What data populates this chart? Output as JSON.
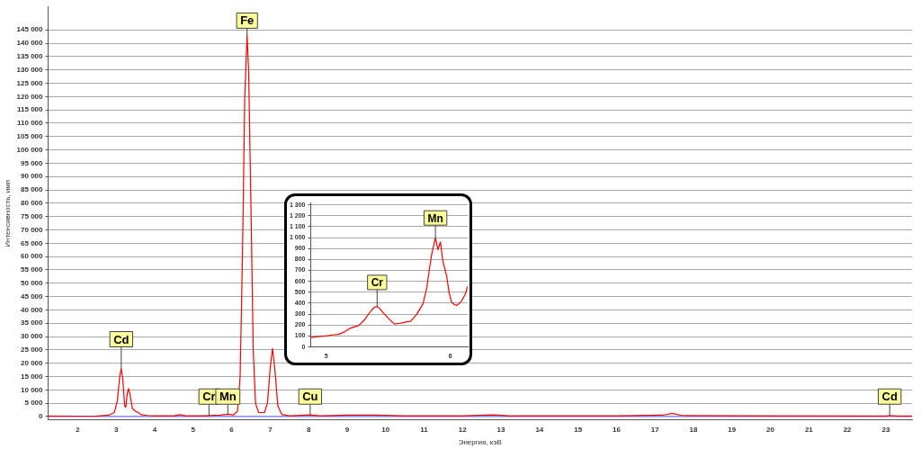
{
  "chart_data": [
    {
      "type": "line",
      "xlabel": "Энергия, кэВ",
      "ylabel": "Интенсивность, имп",
      "xlim": [
        1.23,
        23.68
      ],
      "ylim": [
        -1300,
        153600
      ],
      "xticks": [
        2,
        3,
        4,
        5,
        6,
        7,
        8,
        9,
        10,
        11,
        12,
        13,
        14,
        15,
        16,
        17,
        18,
        19,
        20,
        21,
        22,
        23
      ],
      "yticks": [
        {
          "value": 0,
          "label": "0"
        },
        {
          "value": 5000,
          "label": "5 000"
        },
        {
          "value": 10000,
          "label": "10 000"
        },
        {
          "value": 15000,
          "label": "15 000"
        },
        {
          "value": 20000,
          "label": "20 000"
        },
        {
          "value": 25000,
          "label": "25 000"
        },
        {
          "value": 30000,
          "label": "30 000"
        },
        {
          "value": 35000,
          "label": "35 000"
        },
        {
          "value": 40000,
          "label": "40 000"
        },
        {
          "value": 45000,
          "label": "45 000"
        },
        {
          "value": 50000,
          "label": "50 000"
        },
        {
          "value": 55000,
          "label": "55 000"
        },
        {
          "value": 60000,
          "label": "60 000"
        },
        {
          "value": 65000,
          "label": "65 000"
        },
        {
          "value": 70000,
          "label": "70 000"
        },
        {
          "value": 75000,
          "label": "75 000"
        },
        {
          "value": 80000,
          "label": "80 000"
        },
        {
          "value": 85000,
          "label": "85 000"
        },
        {
          "value": 90000,
          "label": "90 000"
        },
        {
          "value": 95000,
          "label": "95 000"
        },
        {
          "value": 100000,
          "label": "100 000"
        },
        {
          "value": 105000,
          "label": "105 000"
        },
        {
          "value": 110000,
          "label": "110 000"
        },
        {
          "value": 115000,
          "label": "115 000"
        },
        {
          "value": 120000,
          "label": "120 000"
        },
        {
          "value": 125000,
          "label": "125 000"
        },
        {
          "value": 130000,
          "label": "130 000"
        },
        {
          "value": 135000,
          "label": "135 000"
        },
        {
          "value": 140000,
          "label": "140 000"
        },
        {
          "value": 145000,
          "label": "145 000"
        }
      ],
      "grid": "y",
      "legend": false,
      "marker": "none",
      "line_style": "solid",
      "series": [
        {
          "color": "#ff0000",
          "x": [
            1.23,
            2.0,
            2.5,
            2.8,
            2.95,
            3.03,
            3.09,
            3.13,
            3.17,
            3.22,
            3.25,
            3.29,
            3.32,
            3.36,
            3.42,
            3.5,
            3.57,
            3.65,
            3.8,
            4.0,
            4.5,
            4.65,
            4.8,
            5.2,
            5.41,
            5.7,
            5.9,
            6.05,
            6.15,
            6.22,
            6.28,
            6.34,
            6.4,
            6.44,
            6.5,
            6.56,
            6.62,
            6.7,
            6.85,
            6.93,
            7.0,
            7.06,
            7.12,
            7.2,
            7.3,
            7.5,
            8.04,
            8.3,
            9.0,
            9.7,
            10.5,
            12.0,
            12.8,
            13.2,
            16.0,
            17.2,
            17.45,
            17.7,
            19.5,
            23.0,
            23.1,
            23.3,
            23.68
          ],
          "values": [
            200,
            150,
            200,
            500,
            1500,
            6000,
            15000,
            18000,
            14000,
            4000,
            3500,
            9000,
            10500,
            8000,
            3000,
            2000,
            1500,
            700,
            400,
            300,
            250,
            700,
            250,
            250,
            350,
            500,
            900,
            600,
            2000,
            15000,
            60000,
            120000,
            143000,
            130000,
            80000,
            25000,
            5000,
            1500,
            1500,
            5000,
            18000,
            25500,
            18000,
            4000,
            800,
            300,
            600,
            300,
            500,
            500,
            300,
            250,
            600,
            250,
            300,
            500,
            1200,
            400,
            250,
            200,
            400,
            200,
            200
          ]
        },
        {
          "color": "#8080ff",
          "x": [
            1.23,
            23.68
          ],
          "values": [
            0,
            0
          ]
        }
      ],
      "annotations": [
        {
          "text": "Cd",
          "x": 3.13,
          "y": 29000
        },
        {
          "text": "Fe",
          "x": 6.4,
          "y": 148500
        },
        {
          "text": "Cr",
          "x": 5.41,
          "y": 7500
        },
        {
          "text": "Mn",
          "x": 5.9,
          "y": 7500
        },
        {
          "text": "Cu",
          "x": 8.04,
          "y": 7500
        },
        {
          "text": "Cd",
          "x": 23.1,
          "y": 7500
        }
      ]
    },
    {
      "type": "line",
      "xlim": [
        4.875,
        6.14
      ],
      "ylim": [
        0,
        1320
      ],
      "xticks": [
        5,
        6
      ],
      "yticks": [
        {
          "value": 0,
          "label": "0"
        },
        {
          "value": 100,
          "label": "100"
        },
        {
          "value": 200,
          "label": "200"
        },
        {
          "value": 300,
          "label": "300"
        },
        {
          "value": 400,
          "label": "400"
        },
        {
          "value": 500,
          "label": "500"
        },
        {
          "value": 600,
          "label": "600"
        },
        {
          "value": 700,
          "label": "700"
        },
        {
          "value": 800,
          "label": "800"
        },
        {
          "value": 900,
          "label": "900"
        },
        {
          "value": 1000,
          "label": "1 000"
        },
        {
          "value": 1100,
          "label": "1 100"
        },
        {
          "value": 1200,
          "label": "1 200"
        },
        {
          "value": 1300,
          "label": "1 300"
        }
      ],
      "grid": "y",
      "legend": false,
      "marker": "none",
      "line_style": "solid",
      "series": [
        {
          "color": "#ff0000",
          "x": [
            4.877,
            4.93,
            5.0,
            5.05,
            5.1,
            5.15,
            5.19,
            5.23,
            5.26,
            5.31,
            5.36,
            5.39,
            5.41,
            5.44,
            5.46,
            5.49,
            5.52,
            5.55,
            5.58,
            5.61,
            5.65,
            5.68,
            5.73,
            5.78,
            5.81,
            5.83,
            5.85,
            5.87,
            5.88,
            5.9,
            5.92,
            5.94,
            5.97,
            5.99,
            6.01,
            6.03,
            6.05,
            6.07,
            6.09,
            6.12,
            6.14
          ],
          "values": [
            88,
            95,
            100,
            110,
            115,
            140,
            170,
            185,
            195,
            250,
            330,
            365,
            370,
            340,
            310,
            275,
            240,
            210,
            215,
            220,
            230,
            235,
            300,
            395,
            540,
            700,
            850,
            950,
            1000,
            890,
            960,
            785,
            650,
            500,
            410,
            390,
            380,
            395,
            420,
            480,
            555
          ]
        }
      ],
      "annotations": [
        {
          "text": "Cr",
          "x": 5.41,
          "y": 590
        },
        {
          "text": "Mn",
          "x": 5.88,
          "y": 1180
        }
      ]
    }
  ]
}
